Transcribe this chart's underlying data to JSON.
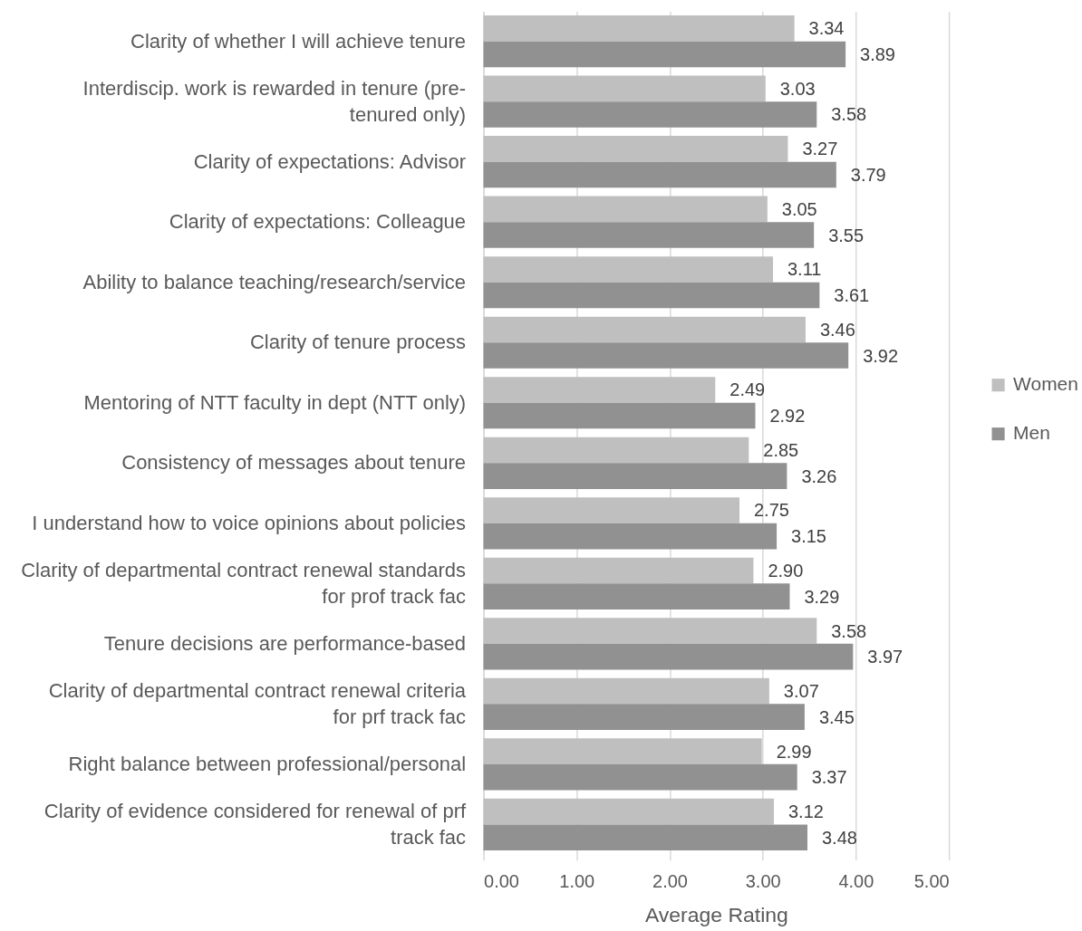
{
  "chart_data": {
    "type": "bar",
    "orientation": "horizontal",
    "categories": [
      "Clarity of whether I will achieve tenure",
      "Interdiscip. work is rewarded in tenure (pre-tenured only)",
      "Clarity of expectations: Advisor",
      "Clarity of expectations: Colleague",
      "Ability to balance teaching/research/service",
      "Clarity of tenure process",
      "Mentoring of NTT faculty in dept (NTT only)",
      "Consistency of messages about tenure",
      "I understand how to voice opinions about policies",
      "Clarity of departmental contract renewal standards for prof track fac",
      "Tenure decisions are performance-based",
      "Clarity of departmental contract renewal criteria for prf track fac",
      "Right balance between professional/personal",
      "Clarity of evidence considered for renewal of prf track fac"
    ],
    "series": [
      {
        "name": "Women",
        "color": "#bfbfbf",
        "values": [
          3.34,
          3.03,
          3.27,
          3.05,
          3.11,
          3.46,
          2.49,
          2.85,
          2.75,
          2.9,
          3.58,
          3.07,
          2.99,
          3.12
        ],
        "value_labels": [
          "3.34",
          "3.03",
          "3.27",
          "3.05",
          "3.11",
          "3.46",
          "2.49",
          "2.85",
          "2.75",
          "2.90",
          "3.58",
          "3.07",
          "2.99",
          "3.12"
        ]
      },
      {
        "name": "Men",
        "color": "#919191",
        "values": [
          3.89,
          3.58,
          3.79,
          3.55,
          3.61,
          3.92,
          2.92,
          3.26,
          3.15,
          3.29,
          3.97,
          3.45,
          3.37,
          3.48
        ],
        "value_labels": [
          "3.89",
          "3.58",
          "3.79",
          "3.55",
          "3.61",
          "3.92",
          "2.92",
          "3.26",
          "3.15",
          "3.29",
          "3.97",
          "3.45",
          "3.37",
          "3.48"
        ]
      }
    ],
    "xlabel": "Average Rating",
    "xlim": [
      0,
      5
    ],
    "xticks": [
      {
        "value": 0,
        "label": "0.00"
      },
      {
        "value": 1,
        "label": "1.00"
      },
      {
        "value": 2,
        "label": "2.00"
      },
      {
        "value": 3,
        "label": "3.00"
      },
      {
        "value": 4,
        "label": "4.00"
      },
      {
        "value": 5,
        "label": "5.00"
      }
    ],
    "grid": "x",
    "legend": "right"
  }
}
